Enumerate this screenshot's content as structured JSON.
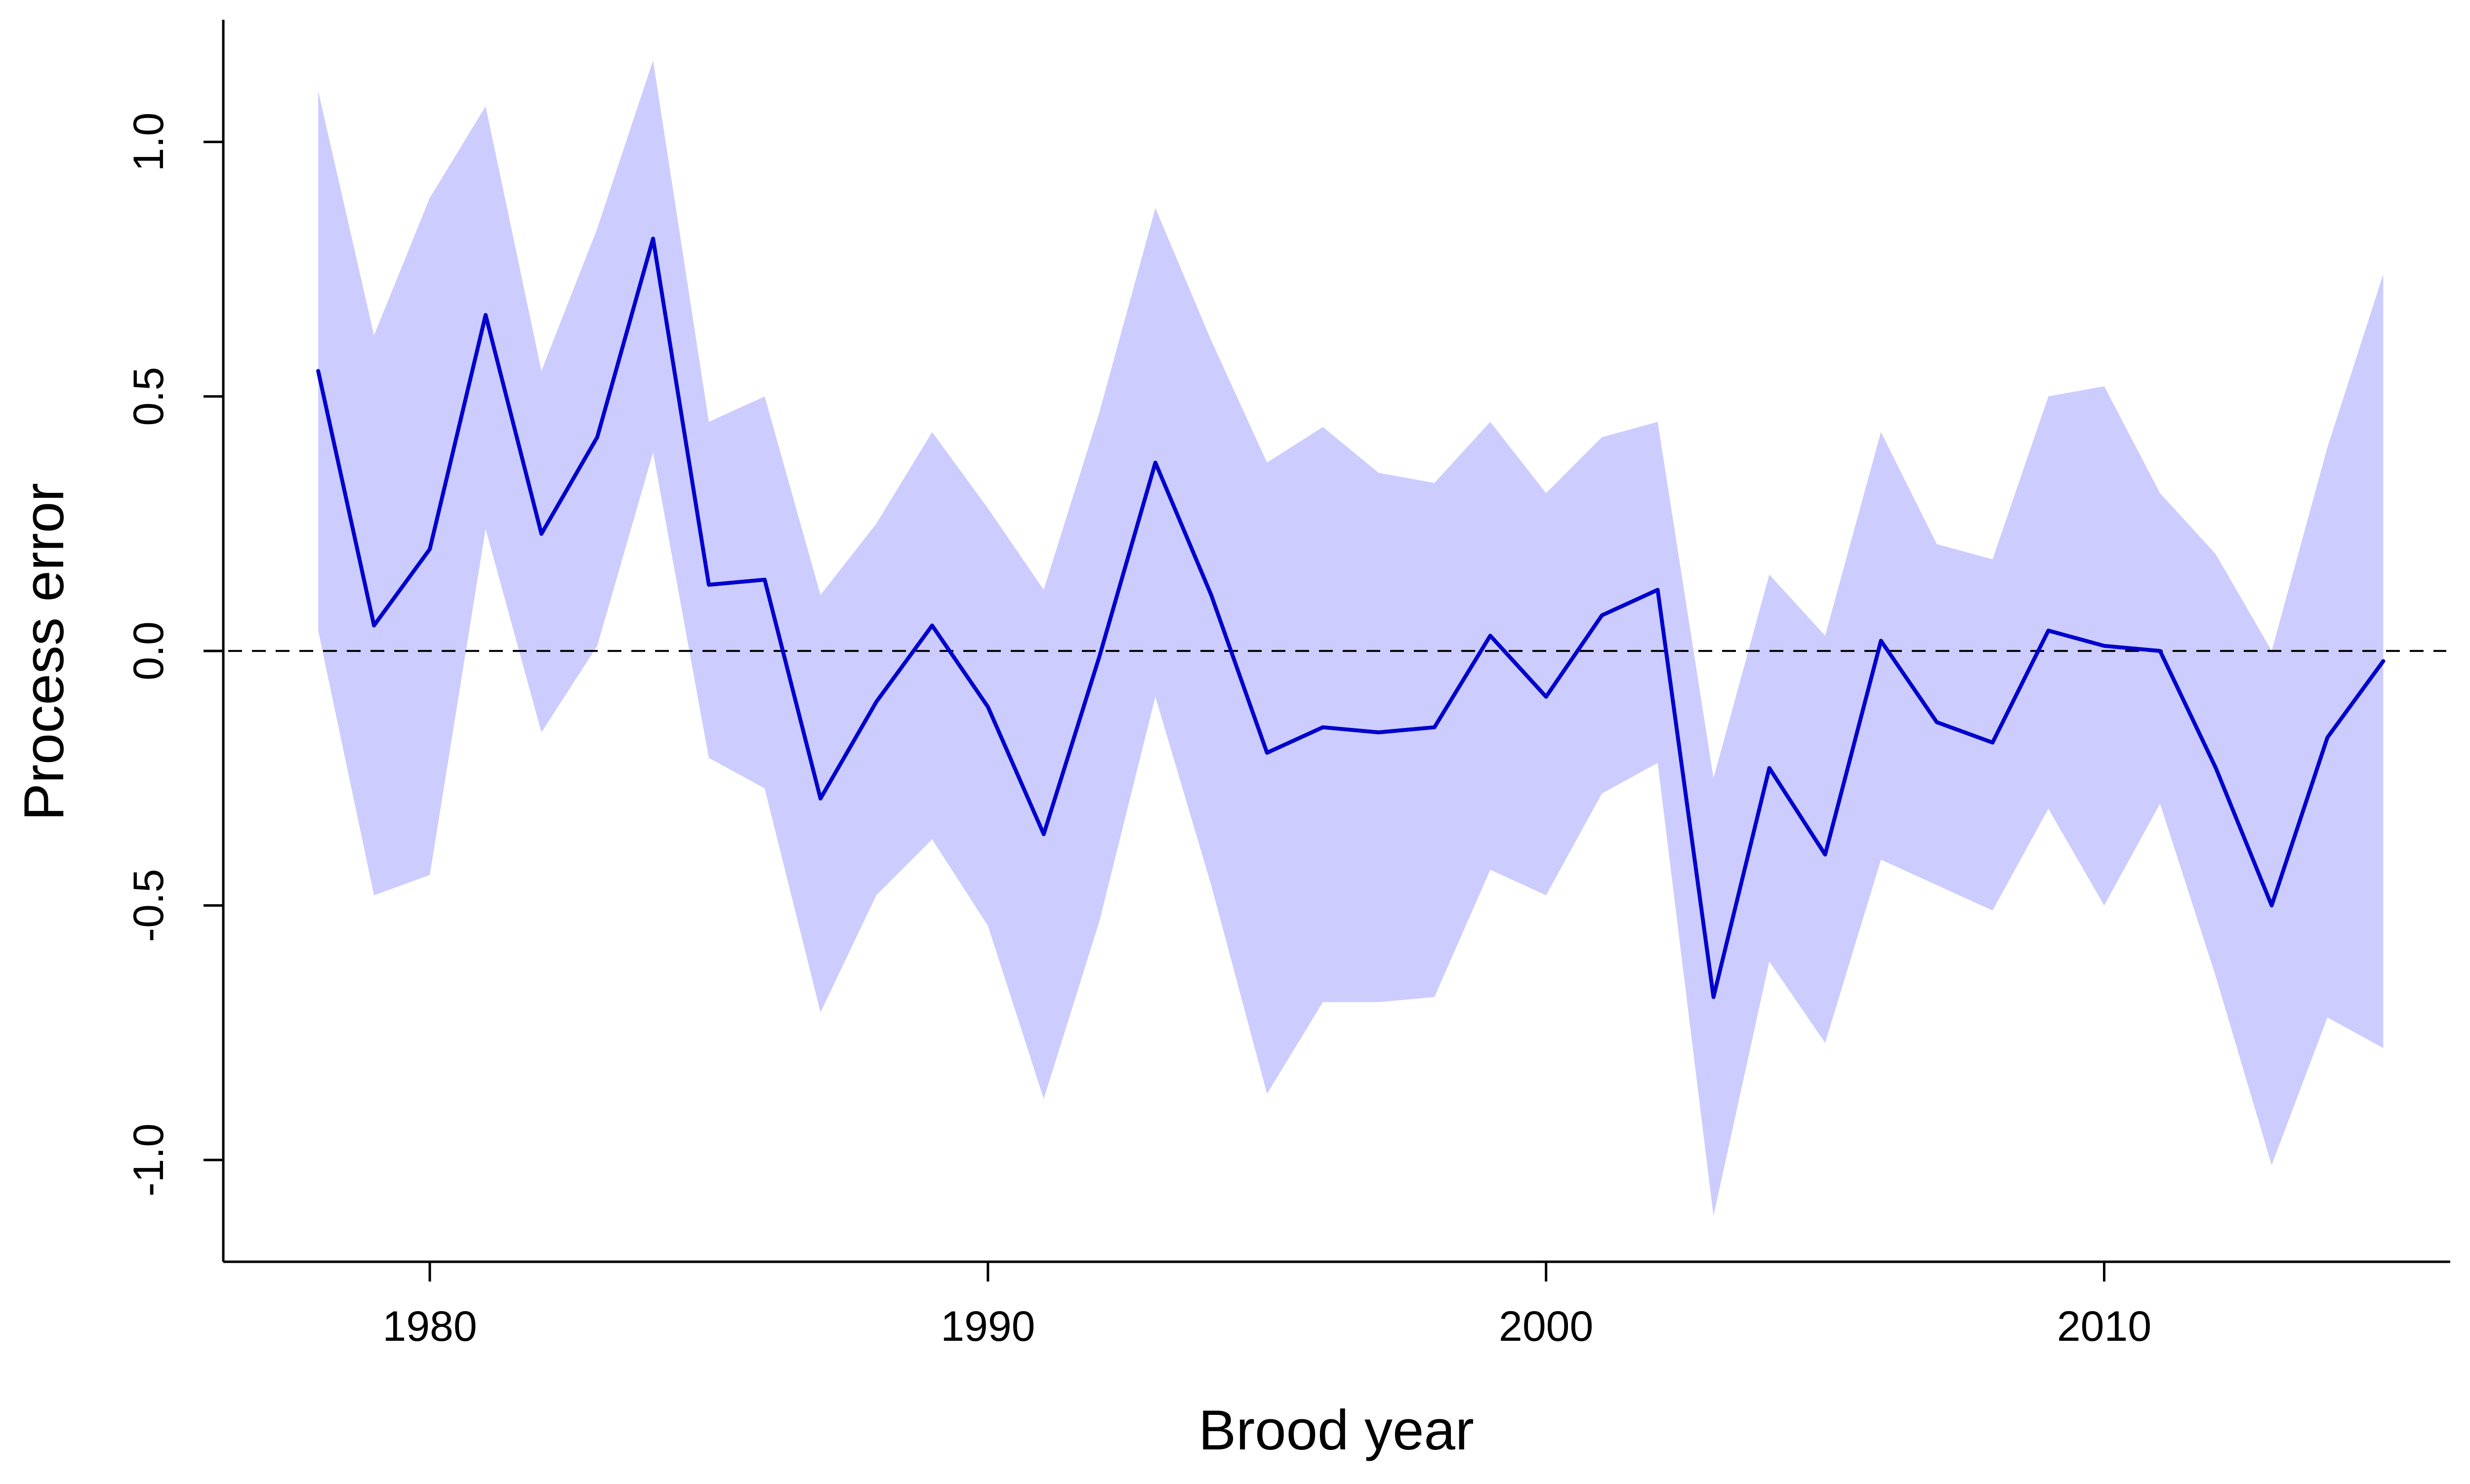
{
  "chart_data": {
    "type": "line",
    "title": "",
    "xlabel": "Brood year",
    "ylabel": "Process error",
    "xlim": [
      1976.3,
      2016.2
    ],
    "ylim": [
      -1.2,
      1.24
    ],
    "x_ticks": [
      1980,
      1990,
      2000,
      2010
    ],
    "x_tick_labels": [
      "1980",
      "1990",
      "2000",
      "2010"
    ],
    "y_ticks": [
      -1.0,
      -0.5,
      0.0,
      0.5,
      1.0
    ],
    "y_tick_labels": [
      "-1.0",
      "-0.5",
      "0.0",
      "0.5",
      "1.0"
    ],
    "grid": false,
    "legend": false,
    "reference_line": {
      "y": 0.0,
      "style": "dashed",
      "color": "#000000"
    },
    "colors": {
      "line": "#0000cc",
      "band": "#ccccff",
      "axis": "#000000"
    },
    "x": [
      1978,
      1979,
      1980,
      1981,
      1982,
      1983,
      1984,
      1985,
      1986,
      1987,
      1988,
      1989,
      1990,
      1991,
      1992,
      1993,
      1994,
      1995,
      1996,
      1997,
      1998,
      1999,
      2000,
      2001,
      2002,
      2003,
      2004,
      2005,
      2006,
      2007,
      2008,
      2009,
      2010,
      2011,
      2012,
      2013,
      2014,
      2015
    ],
    "series": [
      {
        "values": [
          0.55,
          0.05,
          0.2,
          0.66,
          0.23,
          0.42,
          0.81,
          0.13,
          0.14,
          -0.29,
          -0.1,
          0.05,
          -0.11,
          -0.36,
          -0.01,
          0.37,
          0.11,
          -0.2,
          -0.15,
          -0.16,
          -0.15,
          0.03,
          -0.09,
          0.07,
          0.12,
          -0.68,
          -0.23,
          -0.4,
          0.02,
          -0.14,
          -0.18,
          0.04,
          0.01,
          0.0,
          -0.23,
          -0.5,
          -0.17,
          -0.02
        ],
        "upper": [
          1.1,
          0.62,
          0.89,
          1.07,
          0.55,
          0.83,
          1.16,
          0.45,
          0.5,
          0.11,
          0.25,
          0.43,
          0.28,
          0.12,
          0.47,
          0.87,
          0.61,
          0.37,
          0.44,
          0.35,
          0.33,
          0.45,
          0.31,
          0.42,
          0.45,
          -0.25,
          0.15,
          0.03,
          0.43,
          0.21,
          0.18,
          0.5,
          0.52,
          0.31,
          0.19,
          0.0,
          0.4,
          0.74
        ],
        "lower": [
          0.04,
          -0.48,
          -0.44,
          0.24,
          -0.16,
          0.01,
          0.39,
          -0.21,
          -0.27,
          -0.71,
          -0.48,
          -0.37,
          -0.54,
          -0.88,
          -0.53,
          -0.09,
          -0.46,
          -0.87,
          -0.69,
          -0.69,
          -0.68,
          -0.43,
          -0.48,
          -0.28,
          -0.22,
          -1.11,
          -0.61,
          -0.77,
          -0.41,
          -0.46,
          -0.51,
          -0.31,
          -0.5,
          -0.3,
          -0.64,
          -1.01,
          -0.72,
          -0.78
        ]
      }
    ]
  }
}
